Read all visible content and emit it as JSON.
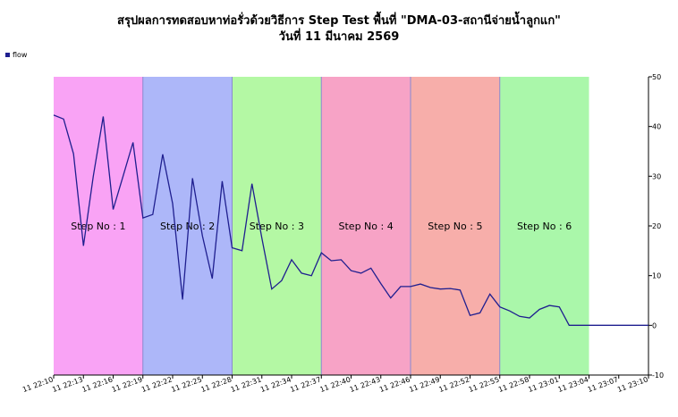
{
  "chart_data": {
    "type": "line",
    "title": "สรุปผลการทดสอบหาท่อรั่วด้วยวิธีการ Step Test พื้นที่ \"DMA-03-สถานีจ่ายน้ำลูกแก\"",
    "subtitle": "วันที่ 11 มีนาคม 2569",
    "legend_position": "top-left",
    "grid": false,
    "ylim": [
      -10,
      50
    ],
    "yticks": [
      "50",
      "40",
      "30",
      "20",
      "10",
      "0",
      "-10"
    ],
    "ytick_values": [
      50,
      40,
      30,
      20,
      10,
      0,
      -10
    ],
    "xlim_minutes": [
      0,
      60
    ],
    "xtick_labels": [
      "11 22:10",
      "11 22:13",
      "11 22:16",
      "11 22:19",
      "11 22:22",
      "11 22:25",
      "11 22:28",
      "11 22:31",
      "11 22:34",
      "11 22:37",
      "11 22:40",
      "11 22:43",
      "11 22:46",
      "11 22:49",
      "11 22:52",
      "11 22:55",
      "11 22:58",
      "11 23:01",
      "11 23:04",
      "11 23:07",
      "11 23:10"
    ],
    "steps": [
      {
        "label": "Step No : 1",
        "start": "22:10",
        "end": "22:19",
        "color": "#f9a3f5"
      },
      {
        "label": "Step No : 2",
        "start": "22:19",
        "end": "22:28",
        "color": "#adb7f9"
      },
      {
        "label": "Step No : 3",
        "start": "22:28",
        "end": "22:37",
        "color": "#b4f8a4"
      },
      {
        "label": "Step No : 4",
        "start": "22:37",
        "end": "22:46",
        "color": "#f7a3c6"
      },
      {
        "label": "Step No : 5",
        "start": "22:46",
        "end": "22:55",
        "color": "#f7aeaa"
      },
      {
        "label": "Step No : 6",
        "start": "22:55",
        "end": "23:04",
        "color": "#aaf7aa"
      }
    ],
    "series": [
      {
        "name": "flow",
        "color": "#1f1f8f",
        "x": [
          "22:10",
          "22:11",
          "22:12",
          "22:13",
          "22:14",
          "22:15",
          "22:16",
          "22:17",
          "22:18",
          "22:19",
          "22:20",
          "22:21",
          "22:22",
          "22:23",
          "22:24",
          "22:25",
          "22:26",
          "22:27",
          "22:28",
          "22:29",
          "22:30",
          "22:31",
          "22:32",
          "22:33",
          "22:34",
          "22:35",
          "22:36",
          "22:37",
          "22:38",
          "22:39",
          "22:40",
          "22:41",
          "22:42",
          "22:43",
          "22:44",
          "22:45",
          "22:46",
          "22:47",
          "22:48",
          "22:49",
          "22:50",
          "22:51",
          "22:52",
          "22:53",
          "22:54",
          "22:55",
          "22:56",
          "22:57",
          "22:58",
          "22:59",
          "23:00",
          "23:01",
          "23:02",
          "23:03",
          "23:04",
          "23:05",
          "23:06",
          "23:07",
          "23:08",
          "23:09",
          "23:10"
        ],
        "values": [
          42.3,
          41.5,
          34.5,
          16,
          30,
          42,
          23.3,
          30,
          36.8,
          21.6,
          22.3,
          34.4,
          24.5,
          5.2,
          29.6,
          18,
          9.4,
          29,
          15.6,
          15,
          28.5,
          17.5,
          7.3,
          9,
          13.2,
          10.5,
          10,
          14.6,
          13,
          13.2,
          11,
          10.5,
          11.5,
          8.4,
          5.5,
          7.8,
          7.8,
          8.3,
          7.6,
          7.3,
          7.4,
          7.1,
          2,
          2.5,
          6.3,
          3.7,
          2.9,
          1.8,
          1.5,
          3.2,
          4,
          3.7,
          0,
          0,
          0,
          0,
          0,
          0,
          0,
          0,
          0
        ]
      }
    ]
  }
}
